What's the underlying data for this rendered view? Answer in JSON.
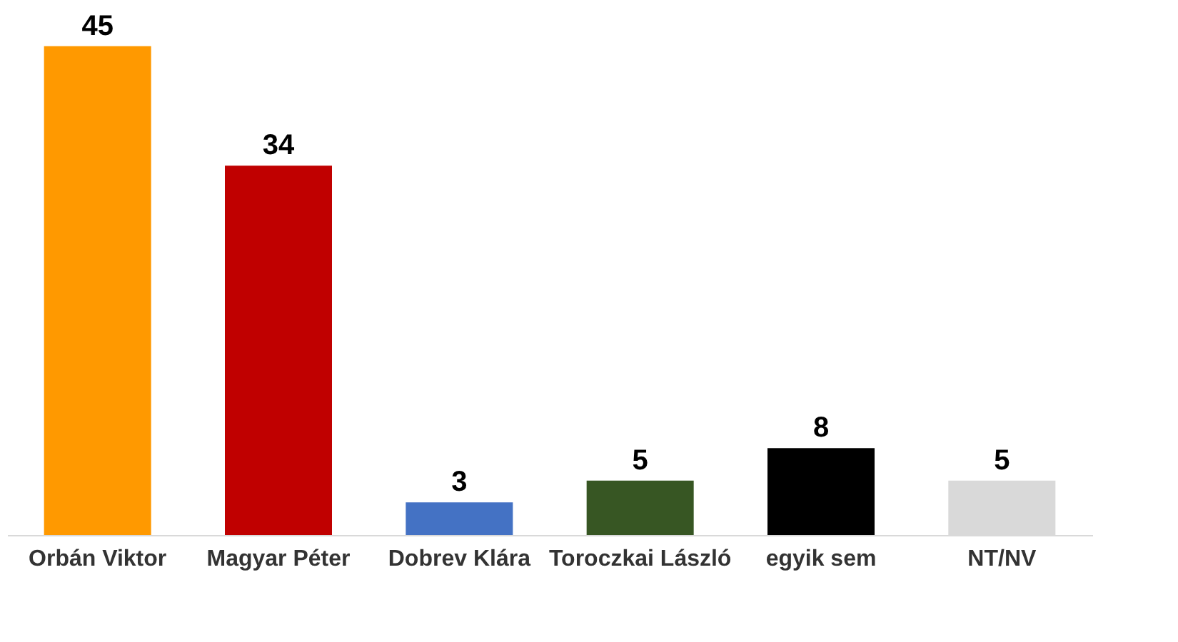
{
  "chart_data": {
    "type": "bar",
    "categories": [
      "Orbán Viktor",
      "Magyar Péter",
      "Dobrev Klára",
      "Toroczkai László",
      "egyik sem",
      "NT/NV"
    ],
    "values": [
      45,
      34,
      3,
      5,
      8,
      5
    ],
    "colors": [
      "#ff9900",
      "#c00000",
      "#4472c4",
      "#375623",
      "#000000",
      "#d9d9d9"
    ],
    "data_labels": true
  }
}
